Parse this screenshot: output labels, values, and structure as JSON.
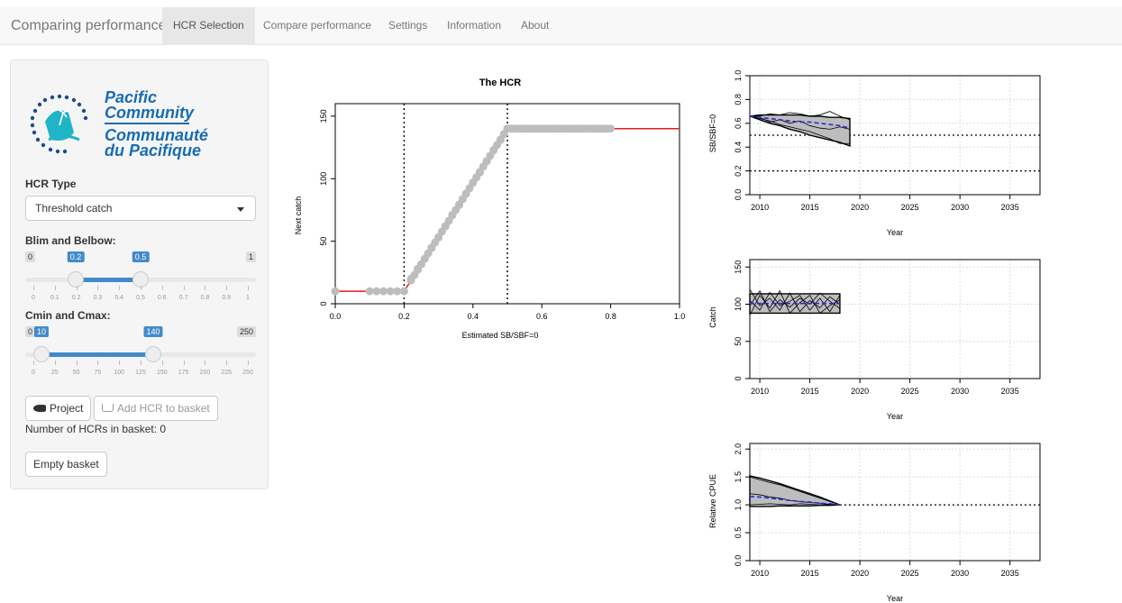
{
  "navbar": {
    "brand": "Comparing performance",
    "tabs": [
      {
        "label": "HCR Selection",
        "active": true
      },
      {
        "label": "Compare performance",
        "active": false
      },
      {
        "label": "Settings",
        "active": false
      },
      {
        "label": "Information",
        "active": false
      },
      {
        "label": "About",
        "active": false
      }
    ]
  },
  "sidebar": {
    "logo": {
      "line1": "Pacific",
      "line2": "Community",
      "line3": "Communauté",
      "line4": "du Pacifique"
    },
    "hcr_type": {
      "label": "HCR Type",
      "selected": "Threshold catch"
    },
    "blim_belbow": {
      "label": "Blim and Belbow:",
      "min": "0",
      "max": "1",
      "from": "0.2",
      "to": "0.5",
      "ticks": [
        "0",
        "0.1",
        "0.2",
        "0.3",
        "0.4",
        "0.5",
        "0.6",
        "0.7",
        "0.8",
        "0.9",
        "1"
      ]
    },
    "cmin_cmax": {
      "label": "Cmin and Cmax:",
      "min": "0",
      "max": "250",
      "from": "10",
      "to": "140",
      "ticks": [
        "0",
        "25",
        "50",
        "75",
        "100",
        "125",
        "150",
        "175",
        "200",
        "225",
        "250"
      ]
    },
    "project_button": "Project",
    "add_button": "Add HCR to basket",
    "basket_text": "Number of HCRs in basket: 0",
    "empty_button": "Empty basket"
  },
  "hcr_chart": {
    "title": "The HCR",
    "xlabel": "Estimated SB/SBF=0",
    "ylabel": "Next catch",
    "xticks": [
      "0.0",
      "0.2",
      "0.4",
      "0.6",
      "0.8",
      "1.0"
    ],
    "yticks": [
      "0",
      "50",
      "100",
      "150"
    ]
  },
  "sb_chart": {
    "ylabel": "SB/SBF=0",
    "xlabel": "Year",
    "yticks": [
      "0.0",
      "0.2",
      "0.4",
      "0.6",
      "0.8",
      "1.0"
    ],
    "xticks": [
      "2010",
      "2015",
      "2020",
      "2025",
      "2030",
      "2035"
    ]
  },
  "catch_chart": {
    "ylabel": "Catch",
    "xlabel": "Year",
    "yticks": [
      "0",
      "50",
      "100",
      "150"
    ],
    "xticks": [
      "2010",
      "2015",
      "2020",
      "2025",
      "2030",
      "2035"
    ]
  },
  "cpue_chart": {
    "ylabel": "Relative CPUE",
    "xlabel": "Year",
    "yticks": [
      "0.0",
      "0.5",
      "1.0",
      "1.5",
      "2.0"
    ],
    "xticks": [
      "2010",
      "2015",
      "2020",
      "2025",
      "2030",
      "2035"
    ]
  },
  "chart_data": [
    {
      "type": "line",
      "title": "The HCR",
      "xlabel": "Estimated SB/SBF=0",
      "ylabel": "Next catch",
      "xlim": [
        0,
        1
      ],
      "ylim": [
        0,
        160
      ],
      "vlines": [
        0.2,
        0.5
      ],
      "series": [
        {
          "x": [
            0,
            0.2,
            0.5,
            1.0
          ],
          "values": [
            10,
            10,
            140,
            140
          ],
          "color": "#e41a1c"
        }
      ],
      "points": {
        "x": [
          0.0,
          0.1,
          0.12,
          0.14,
          0.16,
          0.18,
          0.2,
          0.22,
          0.24,
          0.26,
          0.28,
          0.3,
          0.32,
          0.34,
          0.36,
          0.38,
          0.4,
          0.42,
          0.44,
          0.46,
          0.48,
          0.5,
          0.55,
          0.6,
          0.65,
          0.7,
          0.75,
          0.8
        ],
        "values": [
          10,
          10,
          10,
          10,
          10,
          10,
          10,
          20,
          28,
          36,
          45,
          53,
          62,
          71,
          79,
          88,
          97,
          105,
          114,
          123,
          131,
          140,
          140,
          140,
          140,
          140,
          140,
          140
        ],
        "color": "#bdbdbd"
      }
    },
    {
      "type": "area",
      "ylabel": "SB/SBF=0",
      "xlabel": "Year",
      "xlim": [
        2009,
        2038
      ],
      "ylim": [
        0,
        1
      ],
      "hlines": [
        0.5,
        0.2
      ],
      "x": [
        2009,
        2010,
        2011,
        2012,
        2013,
        2014,
        2015,
        2016,
        2017,
        2018,
        2019
      ],
      "upper": [
        0.66,
        0.67,
        0.67,
        0.67,
        0.67,
        0.67,
        0.66,
        0.66,
        0.65,
        0.65,
        0.64
      ],
      "lower": [
        0.66,
        0.63,
        0.6,
        0.58,
        0.55,
        0.53,
        0.5,
        0.48,
        0.46,
        0.44,
        0.41
      ],
      "median": [
        0.66,
        0.65,
        0.64,
        0.63,
        0.62,
        0.61,
        0.61,
        0.6,
        0.59,
        0.58,
        0.56
      ],
      "traces": [
        [
          0.66,
          0.66,
          0.68,
          0.67,
          0.69,
          0.68,
          0.66,
          0.67,
          0.7,
          0.66,
          0.63
        ],
        [
          0.66,
          0.64,
          0.62,
          0.59,
          0.57,
          0.55,
          0.53,
          0.5,
          0.47,
          0.43,
          0.43
        ],
        [
          0.66,
          0.65,
          0.61,
          0.63,
          0.6,
          0.62,
          0.58,
          0.56,
          0.55,
          0.57,
          0.55
        ]
      ]
    },
    {
      "type": "area",
      "ylabel": "Catch",
      "xlabel": "Year",
      "xlim": [
        2009,
        2038
      ],
      "ylim": [
        0,
        160
      ],
      "x": [
        2009,
        2010,
        2011,
        2012,
        2013,
        2014,
        2015,
        2016,
        2017,
        2018
      ],
      "upper": [
        114,
        114,
        114,
        114,
        114,
        114,
        114,
        114,
        114,
        114
      ],
      "lower": [
        88,
        88,
        88,
        88,
        88,
        88,
        88,
        88,
        88,
        88
      ],
      "median": [
        101,
        101,
        101,
        101,
        101,
        101,
        101,
        101,
        101,
        101
      ],
      "traces": [
        [
          120,
          98,
          108,
          92,
          115,
          90,
          105,
          95,
          110,
          100
        ],
        [
          85,
          112,
          95,
          118,
          88,
          102,
          112,
          88,
          98,
          106
        ],
        [
          105,
          92,
          116,
          98,
          104,
          112,
          92,
          108,
          90,
          112
        ],
        [
          98,
          118,
          90,
          106,
          96,
          108,
          100,
          115,
          104,
          94
        ]
      ]
    },
    {
      "type": "area",
      "ylabel": "Relative CPUE",
      "xlabel": "Year",
      "xlim": [
        2009,
        2038
      ],
      "ylim": [
        0,
        2.1
      ],
      "hlines": [
        1.0
      ],
      "x": [
        2009,
        2010,
        2011,
        2012,
        2013,
        2014,
        2015,
        2016,
        2017,
        2018
      ],
      "upper": [
        1.52,
        1.48,
        1.43,
        1.38,
        1.32,
        1.26,
        1.2,
        1.14,
        1.07,
        1.0
      ],
      "lower": [
        0.97,
        0.97,
        0.97,
        0.98,
        0.98,
        0.98,
        0.98,
        0.99,
        0.99,
        1.0
      ],
      "median": [
        1.15,
        1.14,
        1.12,
        1.1,
        1.08,
        1.06,
        1.05,
        1.03,
        1.02,
        1.0
      ],
      "traces": [
        [
          1.5,
          1.45,
          1.4,
          1.36,
          1.3,
          1.24,
          1.18,
          1.12,
          1.06,
          1.0
        ],
        [
          1.0,
          1.01,
          1.02,
          1.01,
          1.0,
          1.02,
          1.01,
          1.0,
          1.01,
          1.0
        ],
        [
          1.2,
          1.18,
          1.14,
          1.12,
          1.08,
          1.06,
          1.04,
          1.03,
          1.01,
          1.0
        ]
      ]
    }
  ]
}
